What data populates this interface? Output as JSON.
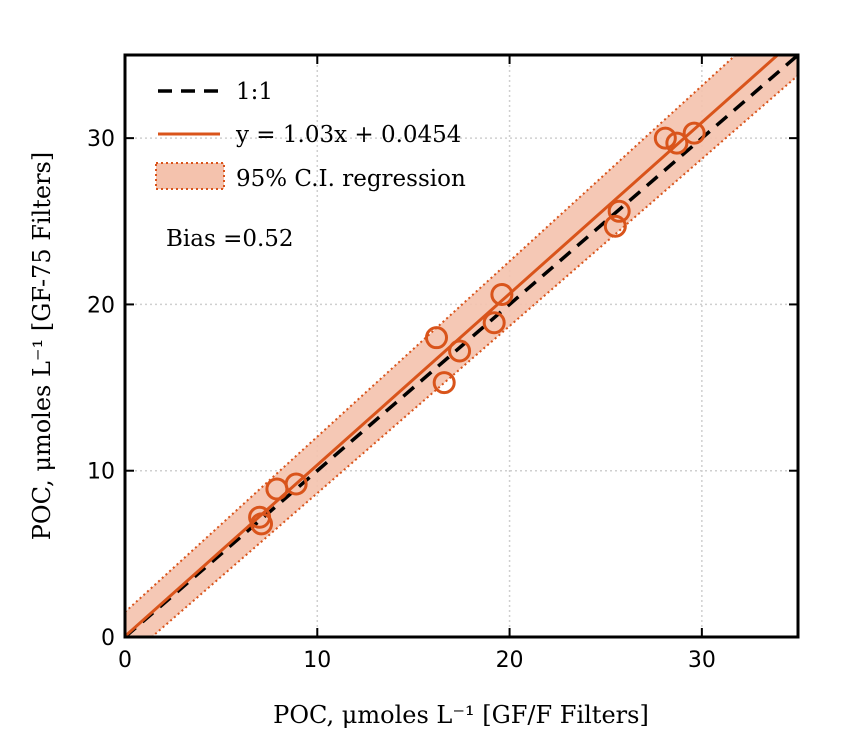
{
  "chart_data": {
    "type": "scatter",
    "xlabel": "POC, μmoles L⁻¹ [GF/F Filters]",
    "ylabel": "POC, μmoles L⁻¹ [GF-75 Filters]",
    "xlim": [
      0,
      35
    ],
    "ylim": [
      0,
      35
    ],
    "xticks": [
      "0",
      "10",
      "20",
      "30"
    ],
    "yticks": [
      "0",
      "10",
      "20",
      "30"
    ],
    "grid": true,
    "legend_position": "top-left",
    "series": [
      {
        "name": "1:1",
        "kind": "line",
        "style": "dashed",
        "color": "#000000",
        "slope": 1,
        "intercept": 0
      },
      {
        "name": "y = 1.03x + 0.0454",
        "kind": "line",
        "style": "solid",
        "color": "#d9541b",
        "slope": 1.03,
        "intercept": 0.0454
      },
      {
        "name": "95% C.I. regression",
        "kind": "band",
        "color": "#d9541b",
        "fill": "#f4c2ad",
        "lower": {
          "slope": 1.005,
          "intercept": -1.4
        },
        "upper": {
          "slope": 1.055,
          "intercept": 1.5
        }
      },
      {
        "name": "data",
        "kind": "markers",
        "marker": "open-circle",
        "color": "#d9541b",
        "points": [
          [
            7.0,
            7.2
          ],
          [
            7.1,
            6.8
          ],
          [
            7.9,
            8.9
          ],
          [
            8.9,
            9.2
          ],
          [
            16.2,
            18.0
          ],
          [
            16.6,
            15.3
          ],
          [
            17.4,
            17.2
          ],
          [
            19.2,
            18.9
          ],
          [
            19.6,
            20.6
          ],
          [
            25.5,
            24.7
          ],
          [
            25.7,
            25.6
          ],
          [
            28.1,
            30.0
          ],
          [
            28.7,
            29.7
          ],
          [
            29.6,
            30.3
          ]
        ]
      }
    ],
    "annotation": "Bias =0.52"
  }
}
